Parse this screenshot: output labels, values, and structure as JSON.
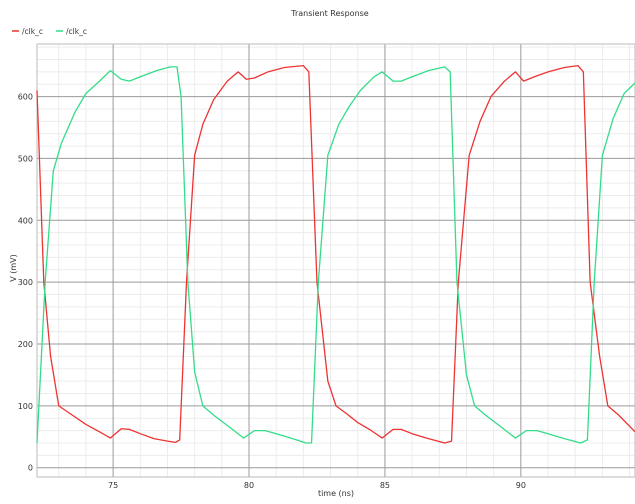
{
  "chart_data": {
    "type": "line",
    "title": "Transient Response",
    "xlabel": "time (ns)",
    "ylabel": "V (mV)",
    "xlim": [
      72.2,
      94.2
    ],
    "ylim": [
      -15,
      685
    ],
    "x_ticks": [
      75,
      80,
      85,
      90
    ],
    "y_ticks": [
      0,
      100,
      200,
      300,
      400,
      500,
      600
    ],
    "grid": true,
    "legend_position": "top-left",
    "series": [
      {
        "name": "/clk_c",
        "color": "#ee3333",
        "points": [
          [
            72.2,
            610
          ],
          [
            72.45,
            300
          ],
          [
            72.7,
            180
          ],
          [
            73.0,
            100
          ],
          [
            73.5,
            85
          ],
          [
            74.0,
            70
          ],
          [
            74.5,
            58
          ],
          [
            74.9,
            48
          ],
          [
            75.3,
            63
          ],
          [
            75.6,
            62
          ],
          [
            76.0,
            55
          ],
          [
            76.5,
            47
          ],
          [
            77.0,
            43
          ],
          [
            77.3,
            41
          ],
          [
            77.45,
            45
          ],
          [
            77.7,
            300
          ],
          [
            78.0,
            505
          ],
          [
            78.3,
            555
          ],
          [
            78.7,
            595
          ],
          [
            79.2,
            625
          ],
          [
            79.6,
            640
          ],
          [
            79.9,
            628
          ],
          [
            80.2,
            630
          ],
          [
            80.7,
            640
          ],
          [
            81.3,
            647
          ],
          [
            82.0,
            650
          ],
          [
            82.2,
            640
          ],
          [
            82.5,
            300
          ],
          [
            82.9,
            140
          ],
          [
            83.2,
            100
          ],
          [
            83.6,
            87
          ],
          [
            84.0,
            73
          ],
          [
            84.5,
            60
          ],
          [
            84.9,
            48
          ],
          [
            85.3,
            62
          ],
          [
            85.6,
            62
          ],
          [
            86.0,
            55
          ],
          [
            86.6,
            47
          ],
          [
            87.2,
            40
          ],
          [
            87.45,
            43
          ],
          [
            87.7,
            300
          ],
          [
            88.1,
            505
          ],
          [
            88.5,
            560
          ],
          [
            88.9,
            600
          ],
          [
            89.4,
            625
          ],
          [
            89.8,
            640
          ],
          [
            90.1,
            625
          ],
          [
            90.5,
            632
          ],
          [
            91.0,
            640
          ],
          [
            91.6,
            647
          ],
          [
            92.1,
            650
          ],
          [
            92.3,
            640
          ],
          [
            92.55,
            300
          ],
          [
            92.9,
            180
          ],
          [
            93.2,
            100
          ],
          [
            93.6,
            85
          ],
          [
            94.2,
            58
          ]
        ]
      },
      {
        "name": "/clk_c",
        "color": "#33dd88",
        "points": [
          [
            72.2,
            40
          ],
          [
            72.5,
            300
          ],
          [
            72.8,
            480
          ],
          [
            73.1,
            525
          ],
          [
            73.6,
            575
          ],
          [
            74.0,
            605
          ],
          [
            74.5,
            625
          ],
          [
            74.9,
            642
          ],
          [
            75.3,
            628
          ],
          [
            75.6,
            625
          ],
          [
            76.0,
            632
          ],
          [
            76.6,
            642
          ],
          [
            77.1,
            648
          ],
          [
            77.35,
            648
          ],
          [
            77.5,
            600
          ],
          [
            77.75,
            300
          ],
          [
            78.0,
            155
          ],
          [
            78.3,
            100
          ],
          [
            78.7,
            85
          ],
          [
            79.3,
            65
          ],
          [
            79.8,
            48
          ],
          [
            80.2,
            60
          ],
          [
            80.6,
            60
          ],
          [
            81.0,
            55
          ],
          [
            81.6,
            47
          ],
          [
            82.1,
            40
          ],
          [
            82.3,
            40
          ],
          [
            82.55,
            300
          ],
          [
            82.9,
            505
          ],
          [
            83.3,
            555
          ],
          [
            83.7,
            585
          ],
          [
            84.1,
            610
          ],
          [
            84.6,
            632
          ],
          [
            84.9,
            640
          ],
          [
            85.3,
            625
          ],
          [
            85.6,
            625
          ],
          [
            86.0,
            632
          ],
          [
            86.6,
            642
          ],
          [
            87.2,
            648
          ],
          [
            87.4,
            640
          ],
          [
            87.65,
            300
          ],
          [
            88.0,
            150
          ],
          [
            88.3,
            100
          ],
          [
            88.7,
            85
          ],
          [
            89.3,
            65
          ],
          [
            89.8,
            48
          ],
          [
            90.2,
            60
          ],
          [
            90.6,
            60
          ],
          [
            91.0,
            55
          ],
          [
            91.6,
            47
          ],
          [
            92.2,
            40
          ],
          [
            92.45,
            45
          ],
          [
            92.7,
            300
          ],
          [
            93.0,
            505
          ],
          [
            93.4,
            565
          ],
          [
            93.8,
            605
          ],
          [
            94.2,
            622
          ]
        ]
      }
    ]
  }
}
